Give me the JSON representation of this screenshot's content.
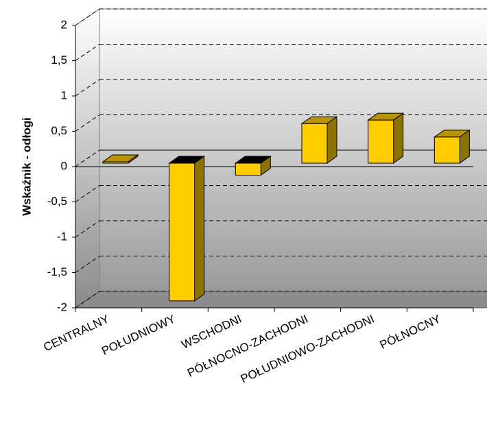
{
  "chart_data": {
    "type": "bar3d",
    "y_label": "Wskaźnik - odłogi",
    "categories": [
      "CENTRALNY",
      "POŁUDNIOWY",
      "WSCHODNI",
      "PÓŁNOCNO-ZACHODNI",
      "POŁUDNIOWO-ZACHODNI",
      "PÓŁNOCNY"
    ],
    "values": [
      0.02,
      -1.95,
      -0.17,
      0.56,
      0.61,
      0.37
    ],
    "color": "#ffcc00",
    "ylim": [
      -2,
      2
    ],
    "yticks": [
      -2,
      {
        "value": -1.5,
        "label": "-1,5"
      },
      -1,
      {
        "value": -0.5,
        "label": "-0,5"
      },
      0,
      {
        "value": 0.5,
        "label": "0,5"
      },
      1,
      {
        "value": 1.5,
        "label": "1,5"
      },
      2
    ],
    "grid": true
  }
}
